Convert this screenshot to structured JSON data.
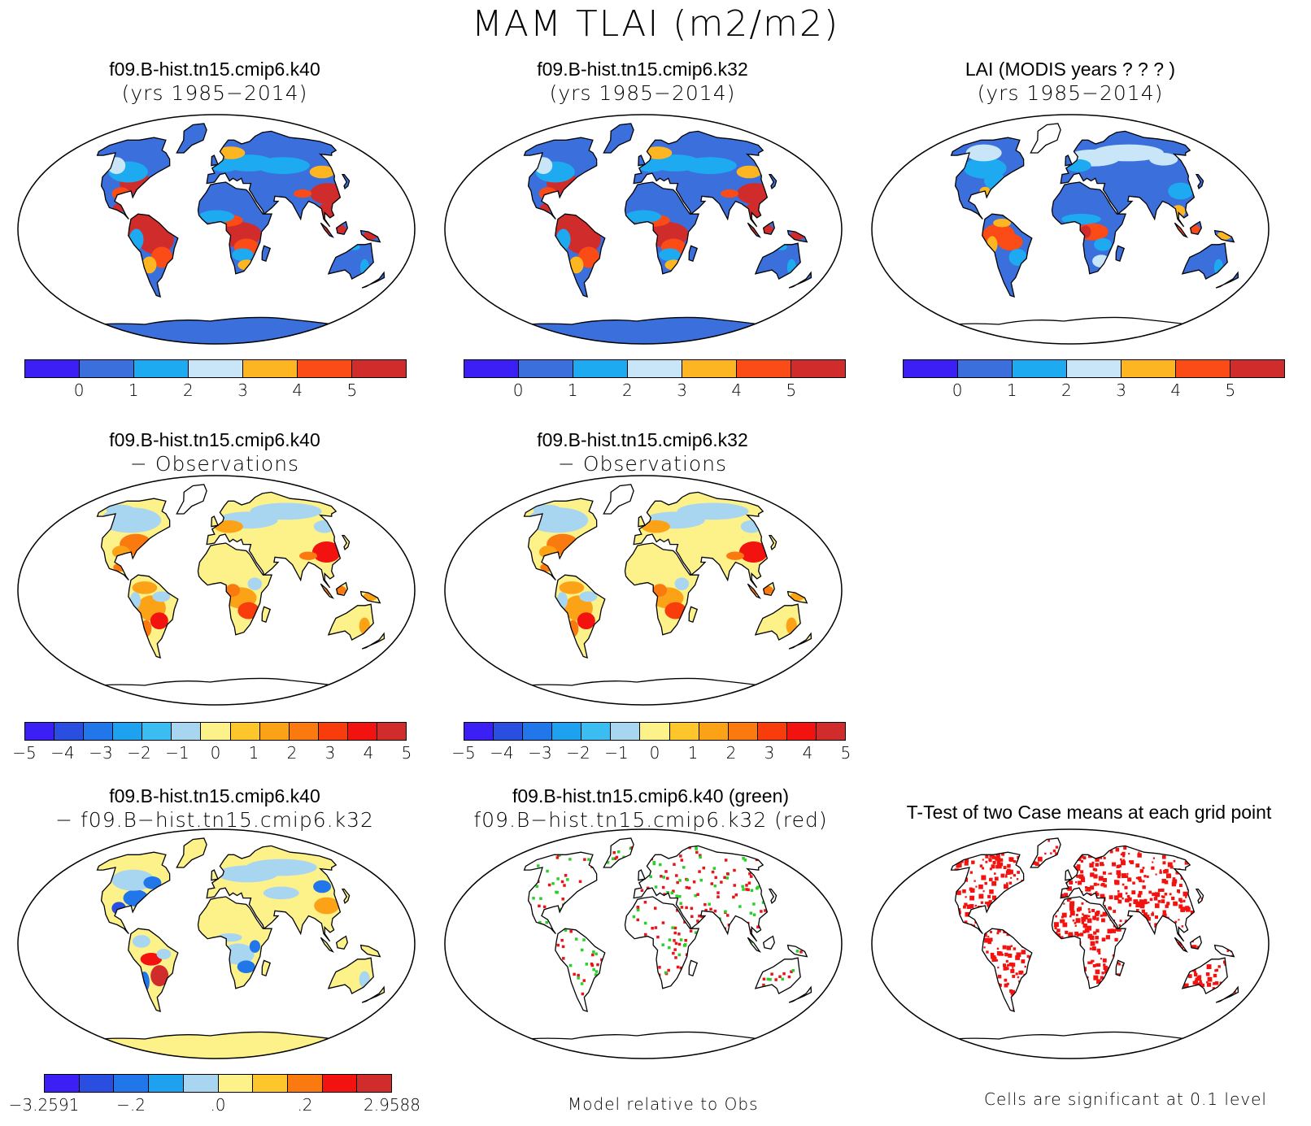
{
  "figure": {
    "title": "MAM TLAI (m2/m2)"
  },
  "panels": [
    {
      "id": "p1",
      "line1": "f09.B-hist.tn15.cmip6.k40",
      "line2": "(yrs 1985−2014)",
      "style": "lai_case",
      "antarctic": "#3a6fdc"
    },
    {
      "id": "p2",
      "line1": "f09.B-hist.tn15.cmip6.k32",
      "line2": "(yrs 1985−2014)",
      "style": "lai_case",
      "antarctic": "#3a6fdc"
    },
    {
      "id": "p3",
      "line1": "LAI (MODIS years ? ? ? )",
      "line2": "(yrs 1985−2014)",
      "style": "lai_obs",
      "antarctic": "#ffffff"
    },
    {
      "id": "p4",
      "line1": "f09.B-hist.tn15.cmip6.k40",
      "line2": "− Observations",
      "style": "diff_obs",
      "antarctic": "#ffffff"
    },
    {
      "id": "p5",
      "line1": "f09.B-hist.tn15.cmip6.k32",
      "line2": "− Observations",
      "style": "diff_obs",
      "antarctic": "#ffffff"
    },
    {
      "id": "p6",
      "line1": "f09.B-hist.tn15.cmip6.k40",
      "line2": "− f09.B−hist.tn15.cmip6.k32",
      "style": "diff_case",
      "antarctic": "#fdf18a"
    },
    {
      "id": "p7",
      "line1": "f09.B-hist.tn15.cmip6.k40 (green)",
      "line2": "f09.B−hist.tn15.cmip6.k32 (red)",
      "style": "relative",
      "antarctic": "#ffffff"
    },
    {
      "id": "p8",
      "line1": "T-Test of two Case means at each grid point",
      "line2": "",
      "style": "ttest",
      "antarctic": "#ffffff"
    }
  ],
  "colorbars": [
    {
      "id": "cb1",
      "colors": [
        "#3b1ff5",
        "#3a6fdc",
        "#1eaaf0",
        "#c8e6f7",
        "#fdb621",
        "#fb4b17",
        "#d12c2c"
      ],
      "labels": [
        "0",
        "1",
        "2",
        "3",
        "4",
        "5"
      ]
    },
    {
      "id": "cb2",
      "colors": [
        "#3b1ff5",
        "#3a6fdc",
        "#1eaaf0",
        "#c8e6f7",
        "#fdb621",
        "#fb4b17",
        "#d12c2c"
      ],
      "labels": [
        "0",
        "1",
        "2",
        "3",
        "4",
        "5"
      ]
    },
    {
      "id": "cb3",
      "colors": [
        "#3b1ff5",
        "#3a6fdc",
        "#1eaaf0",
        "#c8e6f7",
        "#fdb621",
        "#fb4b17",
        "#d12c2c"
      ],
      "labels": [
        "0",
        "1",
        "2",
        "3",
        "4",
        "5"
      ]
    },
    {
      "id": "cb4",
      "colors": [
        "#3b1ff5",
        "#2a4fe0",
        "#2176ea",
        "#1ea2f0",
        "#3bbdf2",
        "#a8d6f0",
        "#fdf18a",
        "#fdc62a",
        "#fca217",
        "#fb7a10",
        "#f83c0c",
        "#f2120f",
        "#d12c2c"
      ],
      "labels": [
        "−5",
        "−4",
        "−3",
        "−2",
        "−1",
        "0",
        "1",
        "2",
        "3",
        "4",
        "5"
      ]
    },
    {
      "id": "cb5",
      "colors": [
        "#3b1ff5",
        "#2a4fe0",
        "#2176ea",
        "#1ea2f0",
        "#3bbdf2",
        "#a8d6f0",
        "#fdf18a",
        "#fdc62a",
        "#fca217",
        "#fb7a10",
        "#f83c0c",
        "#f2120f",
        "#d12c2c"
      ],
      "labels": [
        "−5",
        "−4",
        "−3",
        "−2",
        "−1",
        "0",
        "1",
        "2",
        "3",
        "4",
        "5"
      ]
    },
    {
      "id": "cb6",
      "colors": [
        "#3b1ff5",
        "#2a4fe0",
        "#2176ea",
        "#1ea2f0",
        "#a8d6f0",
        "#fdf18a",
        "#fdc62a",
        "#fb7a10",
        "#f2120f",
        "#d12c2c"
      ],
      "labels": [
        "−3.2591",
        "−.2",
        ".0",
        ".2",
        "2.9588"
      ]
    }
  ],
  "notes": {
    "relative": "Model relative to Obs",
    "significance": "Cells are significant at 0.1 level"
  }
}
